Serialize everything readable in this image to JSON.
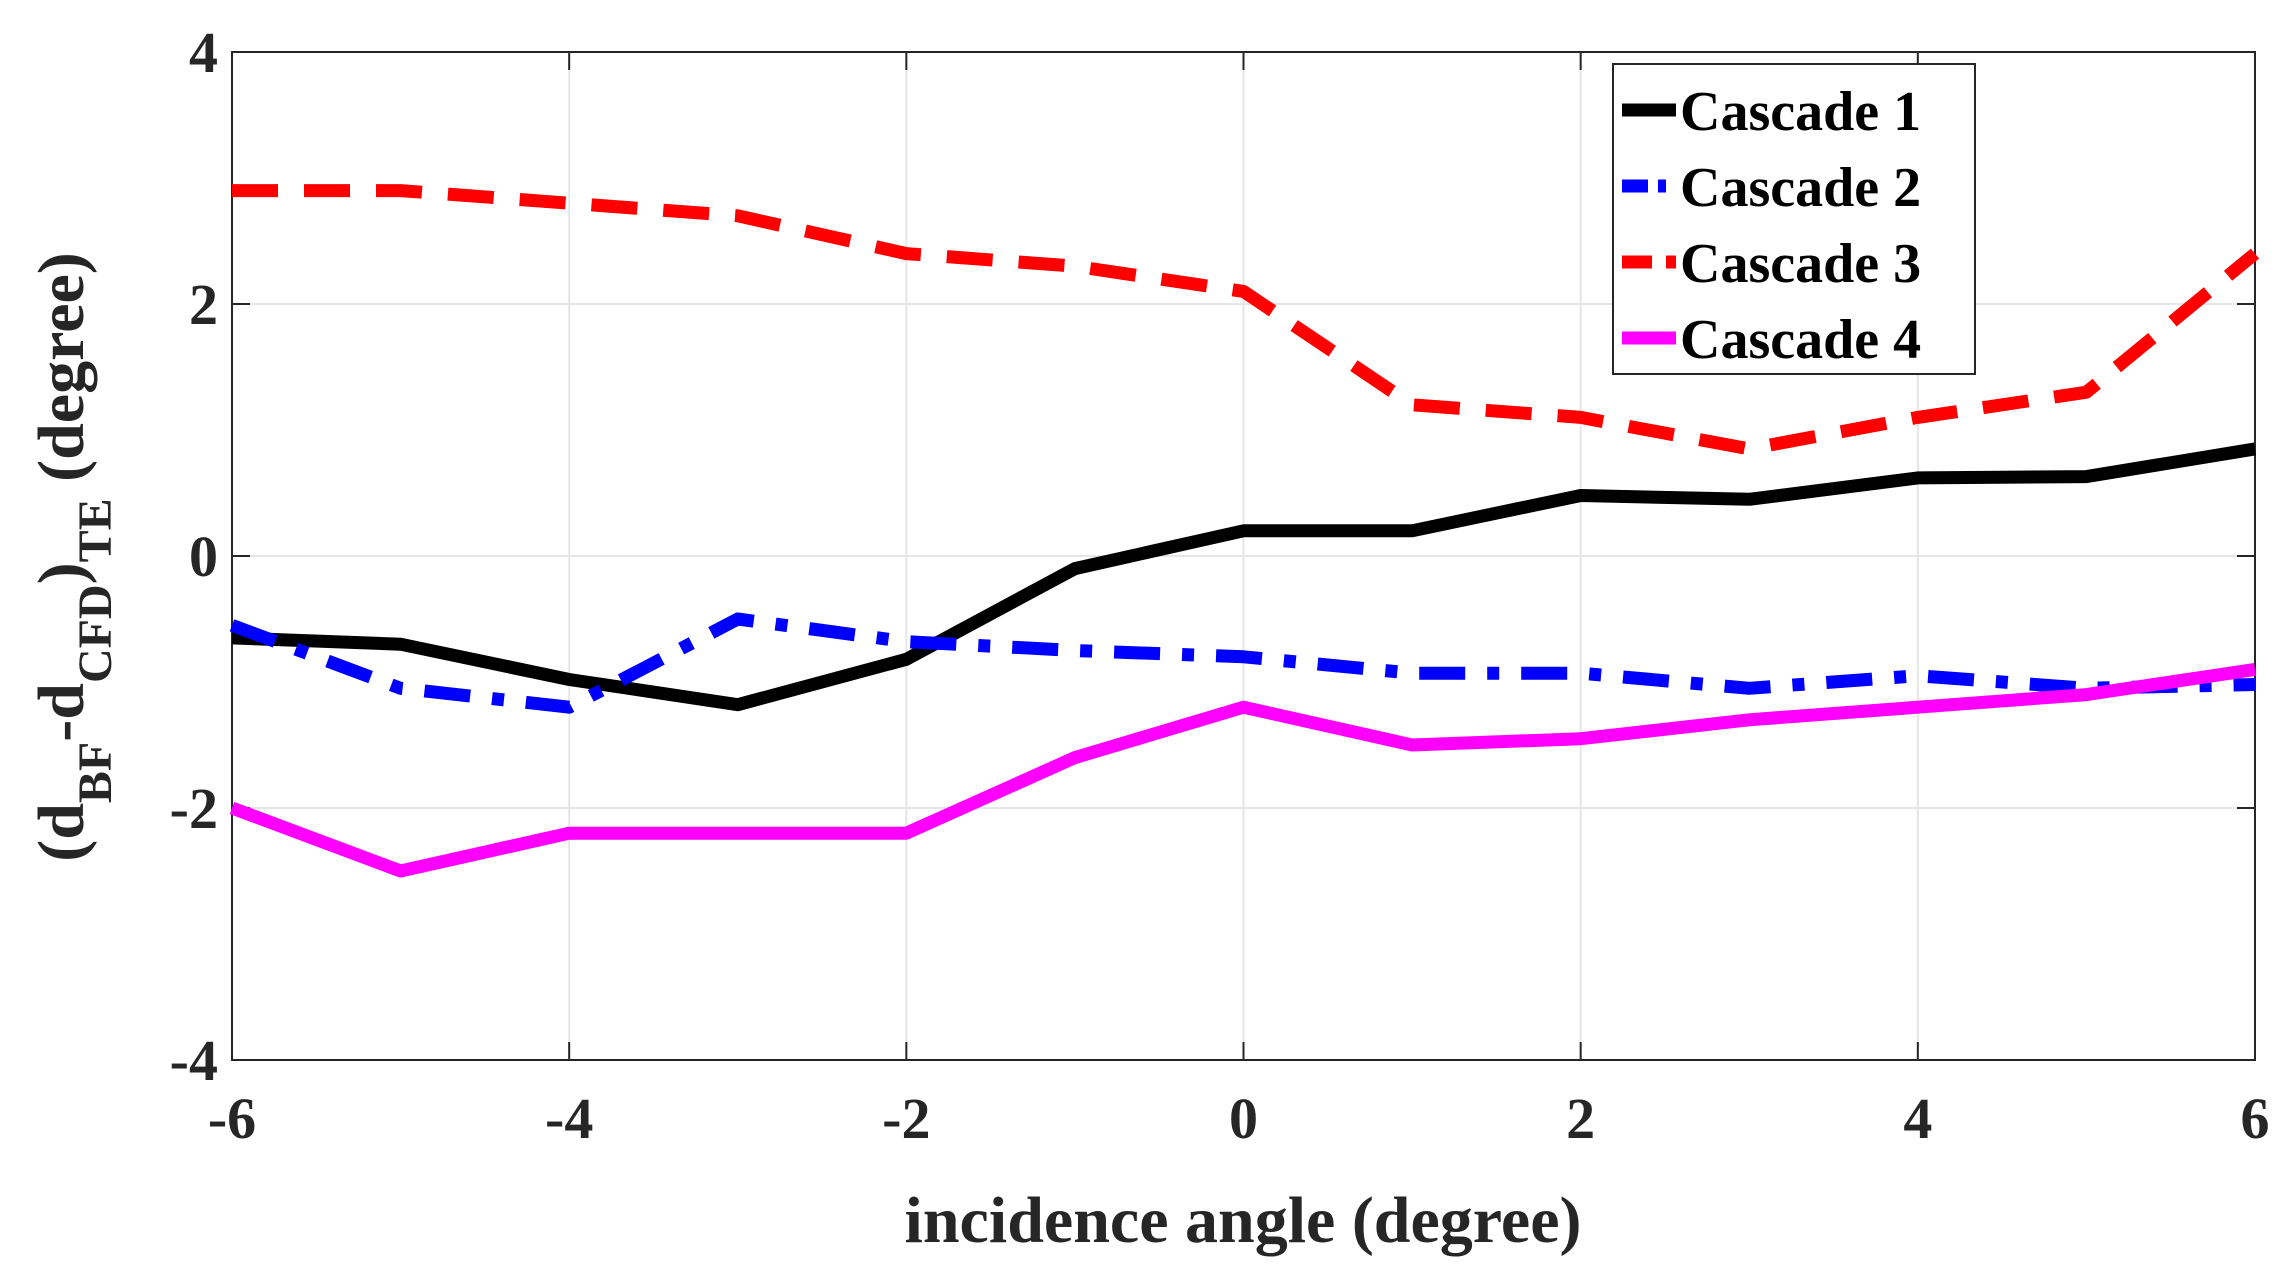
{
  "chart_data": {
    "type": "line",
    "title": "",
    "xlabel": "incidence angle (degree)",
    "ylabel": {
      "open": "(d",
      "sub1": "BF",
      "dash": "-d",
      "sub2": "CFD",
      "close": ")",
      "sub3": "TE",
      "unit": " (degree)"
    },
    "xlim": [
      -6,
      6
    ],
    "ylim": [
      -4,
      4
    ],
    "xticks": [
      "-6",
      "-4",
      "-2",
      "0",
      "2",
      "4",
      "6"
    ],
    "yticks": [
      "-4",
      "-2",
      "0",
      "2",
      "4"
    ],
    "grid": true,
    "legend_position": "top-right",
    "x": [
      -6,
      -5,
      -4,
      -3,
      -2,
      -1,
      0,
      1,
      2,
      3,
      4,
      5,
      6
    ],
    "series": [
      {
        "name": "Cascade 1",
        "color": "#000000",
        "style": "solid",
        "values": [
          -0.65,
          -0.7,
          -0.98,
          -1.18,
          -0.82,
          -0.1,
          0.2,
          0.2,
          0.48,
          0.45,
          0.62,
          0.63,
          0.85
        ]
      },
      {
        "name": "Cascade 2",
        "color": "#0000ff",
        "style": "dashdot",
        "values": [
          -0.55,
          -1.05,
          -1.2,
          -0.5,
          -0.68,
          -0.75,
          -0.8,
          -0.93,
          -0.93,
          -1.05,
          -0.95,
          -1.05,
          -1.02
        ]
      },
      {
        "name": "Cascade 3",
        "color": "#ff0000",
        "style": "dashed",
        "values": [
          2.9,
          2.9,
          2.8,
          2.7,
          2.4,
          2.3,
          2.1,
          1.2,
          1.1,
          0.85,
          1.1,
          1.3,
          2.4
        ]
      },
      {
        "name": "Cascade 4",
        "color": "#ff00ff",
        "style": "solid",
        "values": [
          -2.0,
          -2.5,
          -2.2,
          -2.2,
          -2.2,
          -1.6,
          -1.2,
          -1.5,
          -1.45,
          -1.3,
          -1.2,
          -1.1,
          -0.9
        ]
      }
    ]
  }
}
